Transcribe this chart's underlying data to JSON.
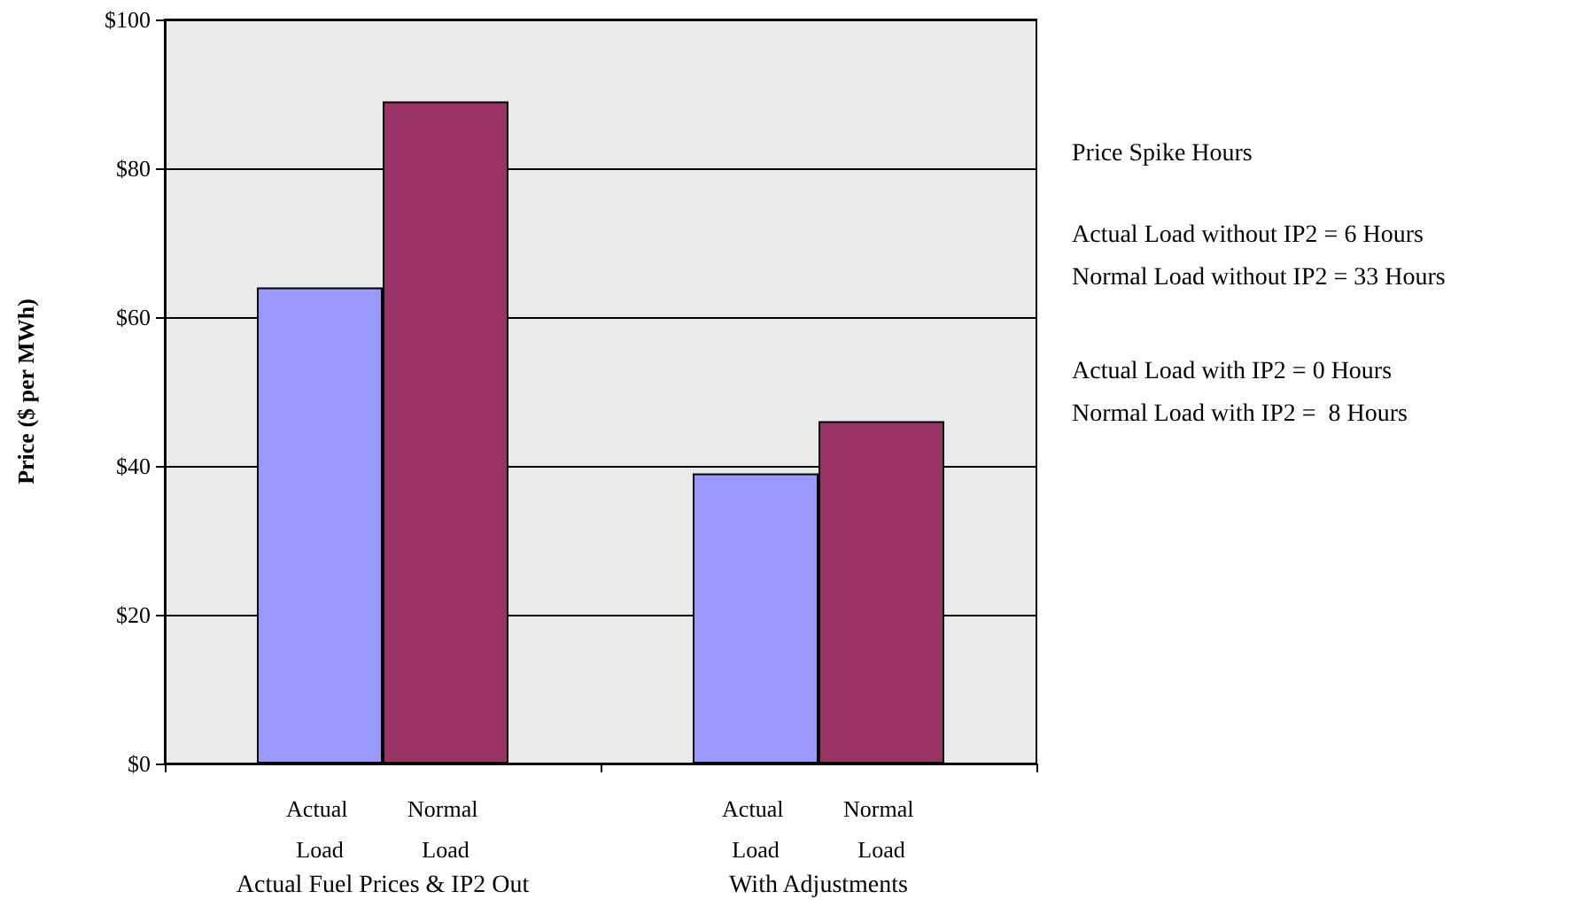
{
  "chart_data": {
    "type": "bar",
    "ylabel": "Price ($ per MWh)",
    "categories": [
      "Actual Fuel Prices & IP2 Out",
      "With Adjustments"
    ],
    "series": [
      {
        "name": "Actual Load",
        "color": "#9999ff",
        "values": [
          64,
          39
        ]
      },
      {
        "name": "Normal Load",
        "color": "#993366",
        "values": [
          89,
          46
        ]
      }
    ],
    "ylim": [
      0,
      100
    ],
    "yticks": [
      {
        "value": 0,
        "label": "$0"
      },
      {
        "value": 20,
        "label": "$20"
      },
      {
        "value": 40,
        "label": "$40"
      },
      {
        "value": 60,
        "label": "$60"
      },
      {
        "value": 80,
        "label": "$80"
      },
      {
        "value": 100,
        "label": "$100"
      }
    ],
    "grid": "y",
    "legend": false,
    "annotations": [
      "Price Spike Hours",
      "Actual Load without IP2 = 6 Hours",
      "Normal Load without IP2 = 33 Hours",
      "Actual Load with IP2 = 0 Hours",
      "Normal Load with IP2 =  8 Hours"
    ]
  }
}
